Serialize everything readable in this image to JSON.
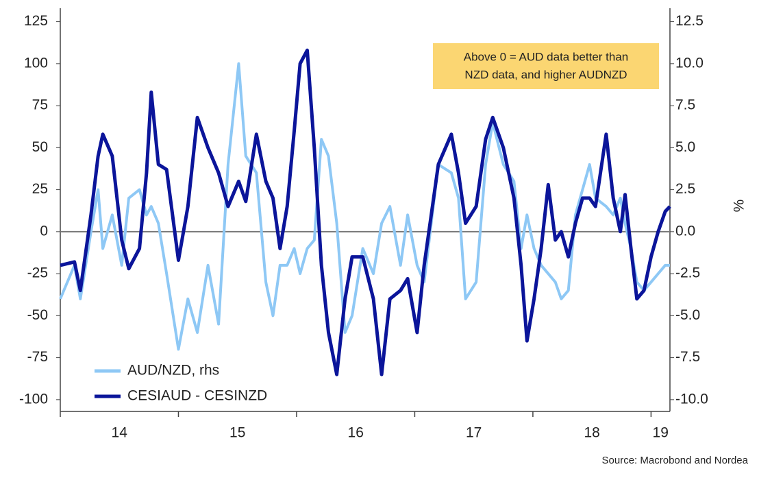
{
  "chart_data": {
    "type": "line",
    "x": [
      2014.0,
      2014.12,
      2014.17,
      2014.26,
      2014.32,
      2014.36,
      2014.44,
      2014.52,
      2014.58,
      2014.67,
      2014.73,
      2014.77,
      2014.83,
      2014.9,
      2015.0,
      2015.08,
      2015.16,
      2015.25,
      2015.34,
      2015.42,
      2015.51,
      2015.57,
      2015.66,
      2015.74,
      2015.8,
      2015.86,
      2015.92,
      2015.98,
      2016.03,
      2016.09,
      2016.15,
      2016.21,
      2016.27,
      2016.34,
      2016.41,
      2016.47,
      2016.56,
      2016.65,
      2016.72,
      2016.79,
      2016.88,
      2016.94,
      2017.02,
      2017.08,
      2017.2,
      2017.31,
      2017.37,
      2017.43,
      2017.52,
      2017.6,
      2017.66,
      2017.75,
      2017.84,
      2017.9,
      2017.95,
      2018.01,
      2018.07,
      2018.13,
      2018.19,
      2018.24,
      2018.3,
      2018.36,
      2018.42,
      2018.48,
      2018.53,
      2018.62,
      2018.68,
      2018.74,
      2018.78,
      2018.83,
      2018.88,
      2018.94,
      2019.0,
      2019.06,
      2019.12,
      2019.16
    ],
    "series": [
      {
        "name": "AUD/NZD, rhs",
        "color": "#8ec8f5",
        "axis": "y2",
        "values": [
          -4.0,
          -2.0,
          -4.0,
          0.0,
          2.5,
          -1.0,
          1.0,
          -2.0,
          2.0,
          2.5,
          1.0,
          1.5,
          0.5,
          -2.5,
          -7.0,
          -4.0,
          -6.0,
          -2.0,
          -5.5,
          4.0,
          10.0,
          4.5,
          3.5,
          -3.0,
          -5.0,
          -2.0,
          -2.0,
          -1.0,
          -2.5,
          -1.0,
          -0.5,
          5.5,
          4.5,
          0.5,
          -6.0,
          -5.0,
          -1.0,
          -2.5,
          0.5,
          1.5,
          -2.0,
          1.0,
          -2.0,
          -3.0,
          4.0,
          3.5,
          2.0,
          -4.0,
          -3.0,
          4.0,
          6.5,
          4.0,
          3.0,
          -1.0,
          1.0,
          -1.0,
          -2.0,
          -2.5,
          -3.0,
          -4.0,
          -3.5,
          1.0,
          2.5,
          4.0,
          2.0,
          1.5,
          1.0,
          2.0,
          0.5,
          -1.0,
          -3.0,
          -3.5,
          -3.0,
          -2.5,
          -2.0,
          -2.0
        ]
      },
      {
        "name": "CESIAUD - CESINZD",
        "color": "#0b159a",
        "values": [
          -20,
          -18,
          -35,
          10,
          45,
          58,
          45,
          -5,
          -22,
          -10,
          35,
          83,
          40,
          37,
          -17,
          15,
          68,
          50,
          35,
          15,
          30,
          18,
          58,
          30,
          20,
          -10,
          15,
          60,
          100,
          108,
          50,
          -20,
          -60,
          -85,
          -40,
          -15,
          -15,
          -40,
          -85,
          -40,
          -35,
          -28,
          -60,
          -20,
          40,
          58,
          35,
          5,
          15,
          55,
          68,
          50,
          20,
          -20,
          -65,
          -40,
          -10,
          28,
          -5,
          0,
          -15,
          5,
          20,
          20,
          15,
          58,
          20,
          0,
          22,
          -10,
          -40,
          -35,
          -15,
          0,
          12,
          15
        ]
      }
    ],
    "xlim": [
      2014.0,
      2019.16
    ],
    "xticks": [
      {
        "value": 2014.5,
        "label": "14"
      },
      {
        "value": 2015.5,
        "label": "15"
      },
      {
        "value": 2016.5,
        "label": "16"
      },
      {
        "value": 2017.5,
        "label": "17"
      },
      {
        "value": 2018.5,
        "label": "18"
      },
      {
        "value": 2019.08,
        "label": "19"
      }
    ],
    "ylim": [
      -107,
      133
    ],
    "yticks": [
      -100,
      -75,
      -50,
      -25,
      0,
      25,
      50,
      75,
      100,
      125
    ],
    "y2lim": [
      -10.7,
      13.3
    ],
    "y2ticks": [
      {
        "value": -10,
        "label": "-10.0"
      },
      -7.5,
      {
        "value": -5,
        "label": "-5.0"
      },
      -2.5,
      {
        "value": 0,
        "label": "0.0"
      },
      2.5,
      {
        "value": 5,
        "label": "5.0"
      },
      7.5,
      {
        "value": 10,
        "label": "10.0"
      },
      12.5
    ],
    "y2_label": "%",
    "annotation": [
      "Above 0 = AUD data better than",
      "NZD data, and higher AUDNZD"
    ],
    "source": "Source: Macrobond and Nordea",
    "legend": "bottom-left"
  }
}
